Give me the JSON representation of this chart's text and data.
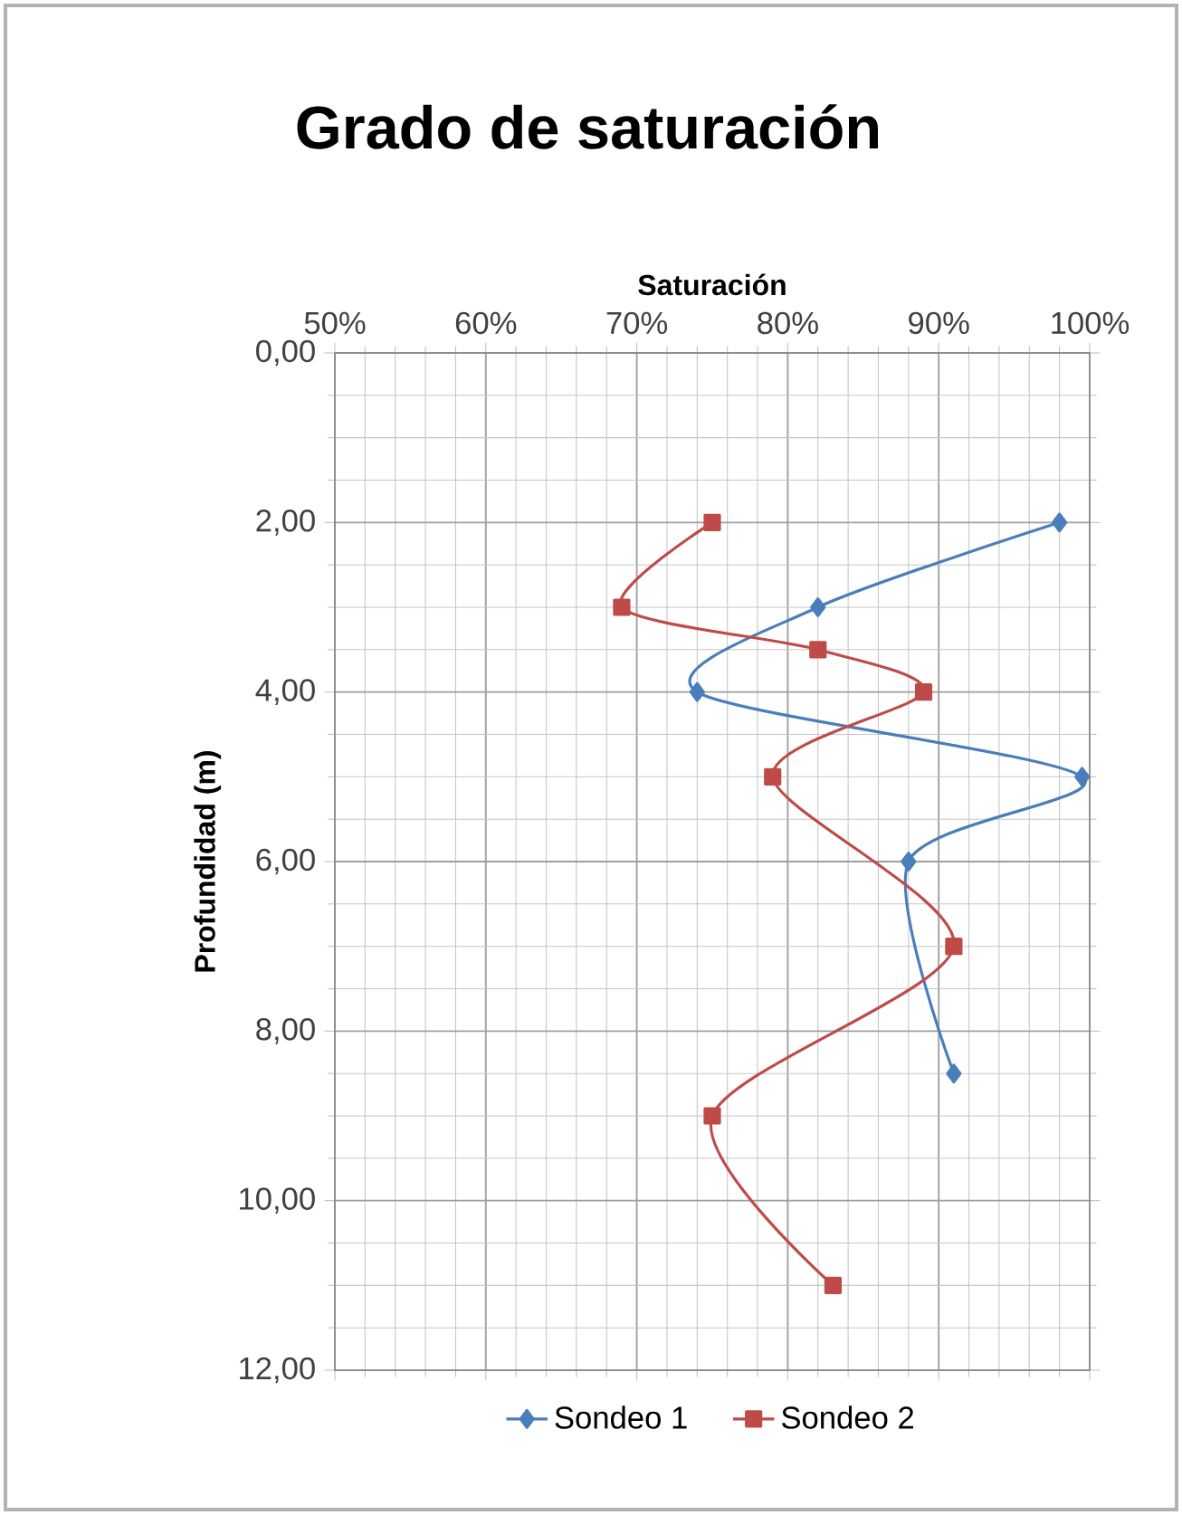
{
  "chart_data": {
    "type": "line",
    "title": "Grado de saturación",
    "xlabel": "Saturación",
    "ylabel": "Profundidad (m)",
    "xlim": [
      50,
      100
    ],
    "xticks": [
      {
        "value": 50,
        "label": "50%"
      },
      {
        "value": 60,
        "label": "60%"
      },
      {
        "value": 70,
        "label": "70%"
      },
      {
        "value": 80,
        "label": "80%"
      },
      {
        "value": 90,
        "label": "90%"
      },
      {
        "value": 100,
        "label": "100%"
      }
    ],
    "ylim": [
      12,
      0
    ],
    "yticks": [
      {
        "value": 0,
        "label": "0,00"
      },
      {
        "value": 2,
        "label": "2,00"
      },
      {
        "value": 4,
        "label": "4,00"
      },
      {
        "value": 6,
        "label": "6,00"
      },
      {
        "value": 8,
        "label": "8,00"
      },
      {
        "value": 10,
        "label": "10,00"
      },
      {
        "value": 12,
        "label": "12,00"
      }
    ],
    "grid": true,
    "legend": "bottom",
    "series": [
      {
        "name": "Sondeo 1",
        "color": "#4a7ebb",
        "marker": "diamond",
        "x": [
          98,
          82,
          74,
          99.5,
          88,
          91
        ],
        "values": [
          2,
          3,
          4,
          5,
          6,
          8.5
        ]
      },
      {
        "name": "Sondeo 2",
        "color": "#be4b48",
        "marker": "square",
        "x": [
          75,
          69,
          82,
          89,
          79,
          91,
          75,
          83
        ],
        "values": [
          2,
          3,
          3.5,
          4,
          5,
          7,
          9,
          11
        ]
      }
    ]
  }
}
